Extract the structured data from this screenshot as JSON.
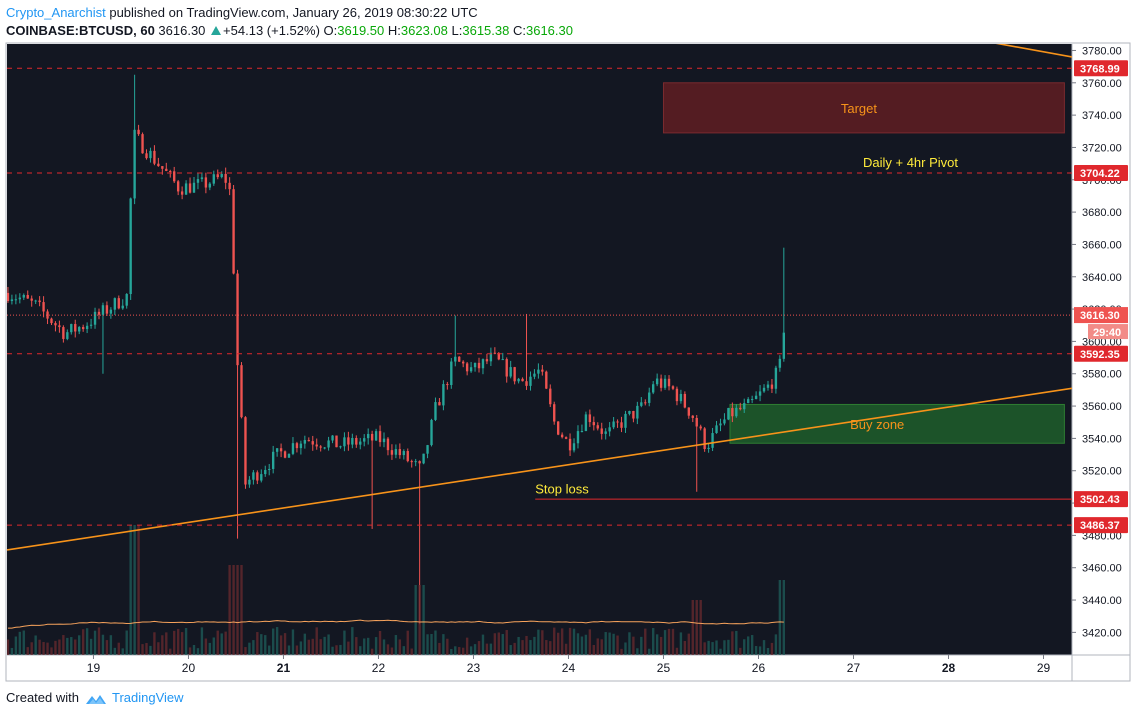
{
  "header": {
    "author": "Crypto_Anarchist",
    "published": "published on TradingView.com, January 26, 2019 08:30:22 UTC",
    "symbol": "COINBASE:BTCUSD, 60",
    "last": "3616.30",
    "change": "+54.13 (+1.52%)",
    "o_label": "O:",
    "o": "3619.50",
    "h_label": "H:",
    "h": "3623.08",
    "l_label": "L:",
    "l": "3615.38",
    "c_label": "C:",
    "c": "3616.30"
  },
  "footer": {
    "created": "Created with",
    "brand": "TradingView"
  },
  "colors": {
    "background": "#131722",
    "up": "#26a69a",
    "down": "#ef5350",
    "level_line": "#e0282d",
    "trendline": "#f7931a",
    "target_zone": "#5c1d22",
    "buy_zone": "#1e5e2a",
    "annotation_yellow": "#ffeb3b",
    "annotation_orange": "#f7931a"
  },
  "chart_data": {
    "type": "candlestick",
    "x_labels": [
      "19",
      "20",
      "21",
      "22",
      "23",
      "24",
      "25",
      "26",
      "27",
      "28",
      "29"
    ],
    "x_ticks_day": [
      19,
      20,
      21,
      22,
      23,
      24,
      25,
      26,
      27,
      28,
      29
    ],
    "bold_ticks": [
      "21",
      "28"
    ],
    "ylim": [
      3406,
      3784
    ],
    "xlim": [
      18.09,
      29.3
    ],
    "y_ticks": [
      "3420.00",
      "3440.00",
      "3460.00",
      "3480.00",
      "3500.00",
      "3520.00",
      "3540.00",
      "3560.00",
      "3580.00",
      "3600.00",
      "3620.00",
      "3640.00",
      "3660.00",
      "3680.00",
      "3700.00",
      "3720.00",
      "3740.00",
      "3760.00",
      "3780.00"
    ],
    "levels": [
      {
        "value": 3768.99,
        "label": "3768.99",
        "style": "dashed"
      },
      {
        "value": 3704.22,
        "label": "3704.22",
        "style": "dashed"
      },
      {
        "value": 3592.35,
        "label": "3592.35",
        "style": "dashed"
      },
      {
        "value": 3502.43,
        "label": "3502.43",
        "style": "solid",
        "from_day": 23.65
      },
      {
        "value": 3486.37,
        "label": "3486.37",
        "style": "dashed"
      }
    ],
    "last_price": {
      "value": 3616.3,
      "label": "3616.30",
      "countdown": "29:40"
    },
    "zones": [
      {
        "name": "Target",
        "x1": 25.0,
        "x2": 29.22,
        "y1": 3729,
        "y2": 3760,
        "type": "target"
      },
      {
        "name": "Buy zone",
        "x1": 25.7,
        "x2": 29.22,
        "y1": 3537,
        "y2": 3561,
        "type": "buy"
      }
    ],
    "annotations": [
      {
        "text": "Daily + 4hr Pivot",
        "x": 27.1,
        "y": 3708,
        "color": "yellow"
      },
      {
        "text": "Stop loss",
        "x": 23.65,
        "y": 3506,
        "color": "yellow"
      }
    ],
    "trendlines": [
      {
        "x1": 18.09,
        "y1": 3471,
        "x2": 29.3,
        "y2": 3571
      },
      {
        "x1": 28.45,
        "y1": 3785,
        "x2": 29.3,
        "y2": 3776
      }
    ],
    "anchors": [
      [
        18.1,
        3630
      ],
      [
        18.4,
        3622
      ],
      [
        18.7,
        3605
      ],
      [
        18.9,
        3610
      ],
      [
        19.15,
        3620
      ],
      [
        19.35,
        3628
      ],
      [
        19.42,
        3728
      ],
      [
        19.65,
        3712
      ],
      [
        19.9,
        3695
      ],
      [
        20.15,
        3697
      ],
      [
        20.38,
        3702
      ],
      [
        20.45,
        3690
      ],
      [
        20.5,
        3600
      ],
      [
        20.6,
        3512
      ],
      [
        20.9,
        3528
      ],
      [
        21.2,
        3540
      ],
      [
        21.6,
        3536
      ],
      [
        22.0,
        3540
      ],
      [
        22.3,
        3527
      ],
      [
        22.45,
        3520
      ],
      [
        22.6,
        3558
      ],
      [
        22.8,
        3588
      ],
      [
        23.0,
        3582
      ],
      [
        23.2,
        3590
      ],
      [
        23.5,
        3575
      ],
      [
        23.7,
        3582
      ],
      [
        23.85,
        3550
      ],
      [
        24.0,
        3536
      ],
      [
        24.2,
        3555
      ],
      [
        24.4,
        3542
      ],
      [
        24.6,
        3552
      ],
      [
        24.8,
        3560
      ],
      [
        24.9,
        3576
      ],
      [
        25.1,
        3570
      ],
      [
        25.3,
        3555
      ],
      [
        25.45,
        3535
      ],
      [
        25.6,
        3548
      ],
      [
        25.7,
        3555
      ],
      [
        25.9,
        3560
      ],
      [
        26.1,
        3572
      ],
      [
        26.22,
        3582
      ],
      [
        26.28,
        3616
      ]
    ],
    "volume_ticks": "volume histogram at bottom with moving average line"
  }
}
